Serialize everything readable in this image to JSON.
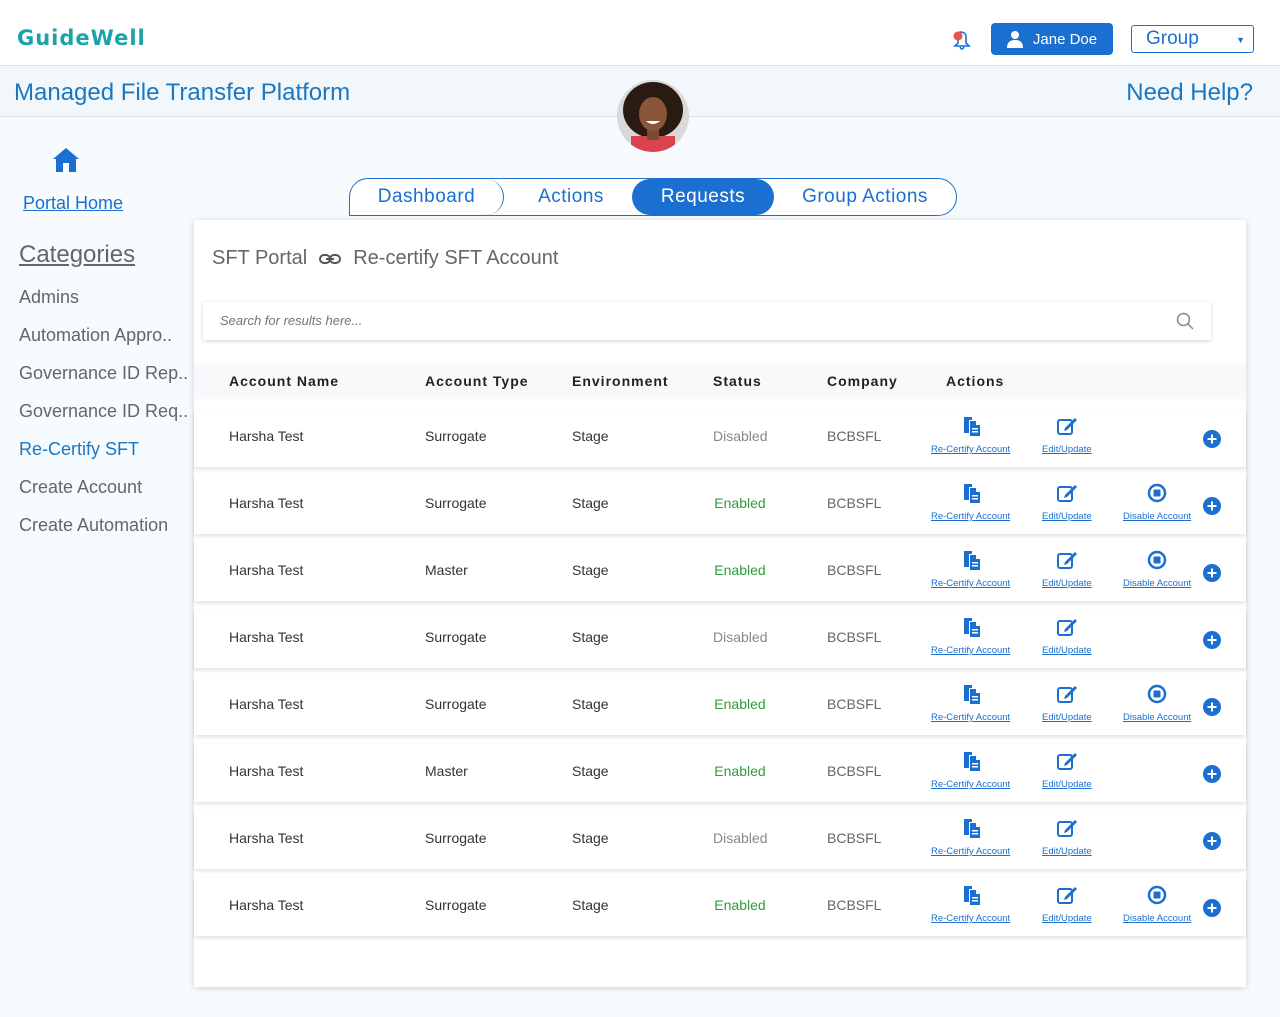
{
  "header": {
    "logo": "GuideWell",
    "user_name": "Jane Doe",
    "group_value": "Group"
  },
  "titlebar": {
    "title": "Managed File Transfer Platform",
    "help": "Need Help?"
  },
  "sidebar": {
    "portal_home": "Portal Home",
    "categories_title": "Categories",
    "items": [
      {
        "label": "Admins"
      },
      {
        "label": "Automation Appro.."
      },
      {
        "label": "Governance ID Rep.."
      },
      {
        "label": "Governance ID Req.."
      },
      {
        "label": "Re-Certify SFT"
      },
      {
        "label": "Create Account"
      },
      {
        "label": "Create Automation"
      }
    ]
  },
  "tabs": [
    "Dashboard",
    "Actions",
    "Requests",
    "Group Actions"
  ],
  "breadcrumb": {
    "root": "SFT Portal",
    "current": "Re-certify SFT Account"
  },
  "search": {
    "placeholder": "Search for results here..."
  },
  "table": {
    "columns": [
      "Account Name",
      "Account Type",
      "Environment",
      "Status",
      "Company",
      "Actions"
    ],
    "action_labels": {
      "recertify": "Re-Certify Account",
      "edit": "Edit/Update",
      "disable": "Disable Account"
    },
    "rows": [
      {
        "name": "Harsha Test",
        "type": "Surrogate",
        "env": "Stage",
        "status": "Disabled",
        "company": "BCBSFL",
        "can_disable": false
      },
      {
        "name": "Harsha Test",
        "type": "Surrogate",
        "env": "Stage",
        "status": "Enabled",
        "company": "BCBSFL",
        "can_disable": true
      },
      {
        "name": "Harsha Test",
        "type": "Master",
        "env": "Stage",
        "status": "Enabled",
        "company": "BCBSFL",
        "can_disable": true
      },
      {
        "name": "Harsha Test",
        "type": "Surrogate",
        "env": "Stage",
        "status": "Disabled",
        "company": "BCBSFL",
        "can_disable": false
      },
      {
        "name": "Harsha Test",
        "type": "Surrogate",
        "env": "Stage",
        "status": "Enabled",
        "company": "BCBSFL",
        "can_disable": true
      },
      {
        "name": "Harsha Test",
        "type": "Master",
        "env": "Stage",
        "status": "Enabled",
        "company": "BCBSFL",
        "can_disable": false
      },
      {
        "name": "Harsha Test",
        "type": "Surrogate",
        "env": "Stage",
        "status": "Disabled",
        "company": "BCBSFL",
        "can_disable": false
      },
      {
        "name": "Harsha Test",
        "type": "Surrogate",
        "env": "Stage",
        "status": "Enabled",
        "company": "BCBSFL",
        "can_disable": true
      }
    ]
  },
  "colors": {
    "primary": "#1a6fd1",
    "enabled": "#2e9d3a",
    "disabled": "#888888",
    "logo": "#1aa3a8"
  }
}
